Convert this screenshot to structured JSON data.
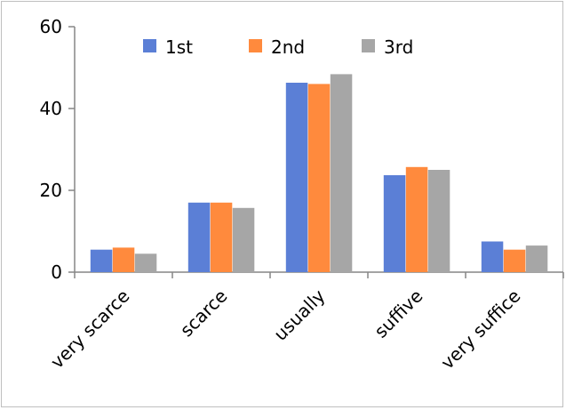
{
  "chart_data": {
    "type": "bar",
    "title": "",
    "xlabel": "",
    "ylabel": "",
    "categories": [
      "very scarce",
      "scarce",
      "usually",
      "suffive",
      "very suffice"
    ],
    "series": [
      {
        "name": "1st",
        "values": [
          5.5,
          17.0,
          46.3,
          23.7,
          7.5
        ]
      },
      {
        "name": "2nd",
        "values": [
          6.0,
          17.0,
          46.0,
          25.7,
          5.5
        ]
      },
      {
        "name": "3rd",
        "values": [
          4.5,
          15.7,
          48.4,
          25.0,
          6.5
        ]
      }
    ],
    "ylim": [
      0,
      60
    ],
    "yticks": [
      0,
      20,
      40,
      60
    ],
    "grid": false,
    "legend_position": "top",
    "colors": [
      "#5b7fd6",
      "#ff8a3d",
      "#a6a6a6"
    ]
  }
}
